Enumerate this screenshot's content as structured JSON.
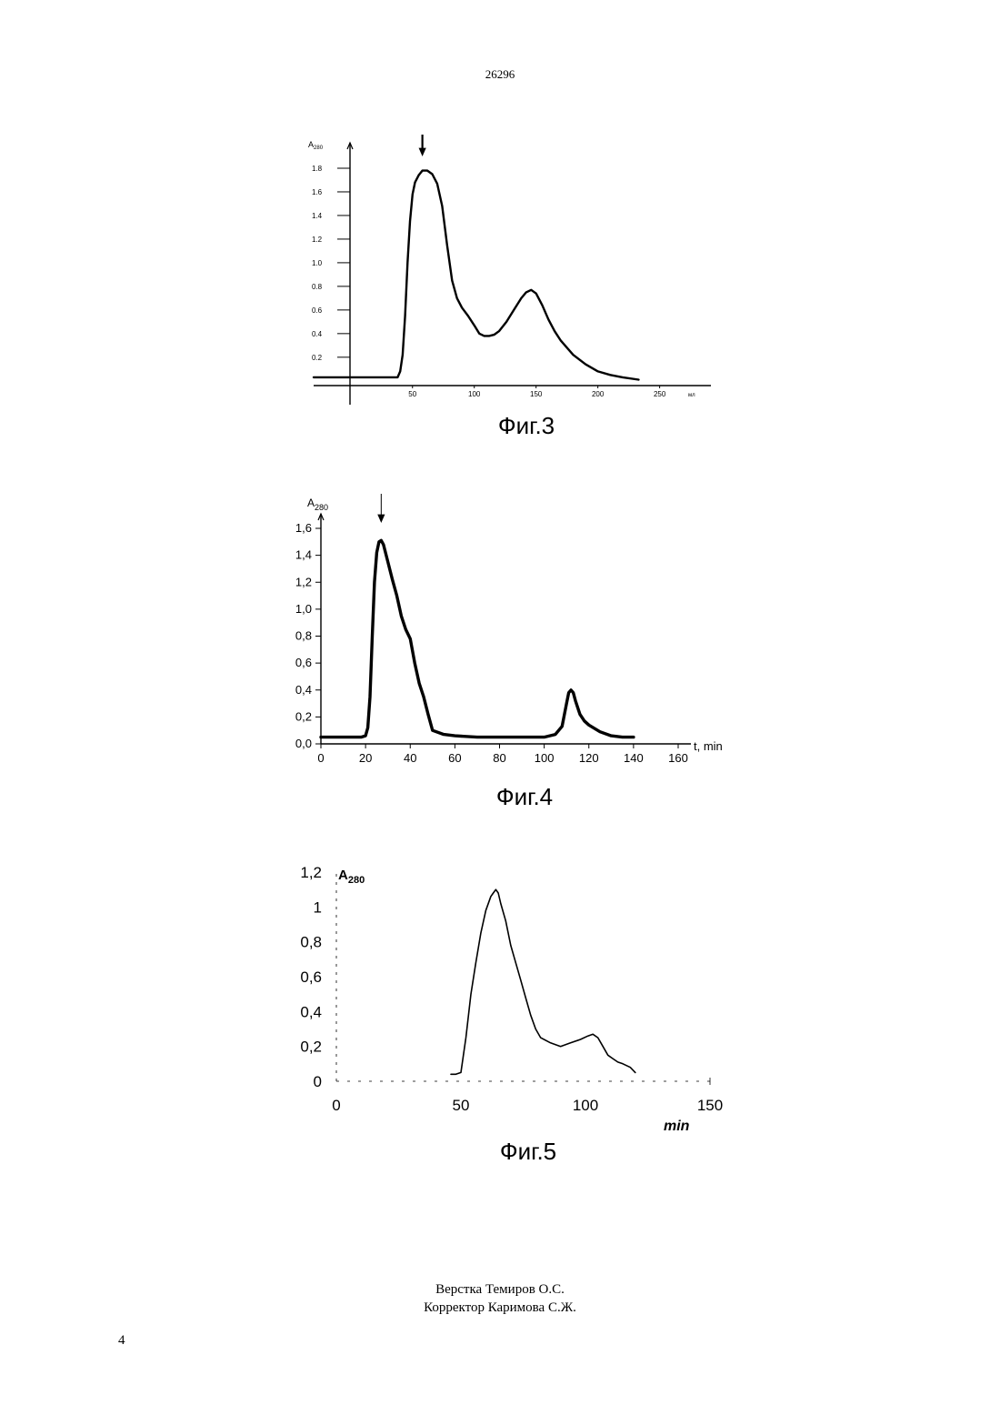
{
  "header": {
    "document_number": "26296"
  },
  "footer": {
    "layout_credit": "Верстка Темиров О.С.",
    "corrector_credit": "Корректор Каримова С.Ж.",
    "page_number": "4"
  },
  "chart_data": [
    {
      "type": "line",
      "figure_label": "Фиг.3",
      "ylabel": "A",
      "ylabel_sub": "280",
      "xlabel": "мл",
      "xlim": [
        -30,
        290
      ],
      "ylim": [
        -0.04,
        1.9
      ],
      "x_ticks": [
        50,
        100,
        150,
        200,
        250
      ],
      "x_tick_labels": [
        "50",
        "100",
        "150",
        "200",
        "250"
      ],
      "y_ticks": [
        0.2,
        0.4,
        0.6,
        0.8,
        1.0,
        1.2,
        1.4,
        1.6,
        1.8
      ],
      "y_tick_labels": [
        "0.2",
        "0.4",
        "0.6",
        "0.8",
        "1.0",
        "1.2",
        "1.4",
        "1.6",
        "1.8"
      ],
      "arrow_x": 58,
      "series": [
        {
          "x": [
            -30,
            0,
            20,
            38,
            40,
            42,
            44,
            46,
            48,
            50,
            52,
            55,
            58,
            62,
            66,
            70,
            74,
            78,
            82,
            86,
            90,
            95,
            100,
            104,
            108,
            112,
            116,
            120,
            126,
            132,
            138,
            142,
            146,
            150,
            155,
            160,
            165,
            170,
            180,
            190,
            200,
            210,
            220,
            233
          ],
          "y": [
            0.03,
            0.03,
            0.03,
            0.03,
            0.08,
            0.22,
            0.55,
            1.0,
            1.35,
            1.58,
            1.68,
            1.74,
            1.78,
            1.78,
            1.75,
            1.67,
            1.48,
            1.15,
            0.85,
            0.7,
            0.62,
            0.55,
            0.47,
            0.4,
            0.38,
            0.38,
            0.39,
            0.42,
            0.5,
            0.6,
            0.7,
            0.75,
            0.77,
            0.74,
            0.64,
            0.52,
            0.42,
            0.34,
            0.22,
            0.14,
            0.08,
            0.05,
            0.03,
            0.01
          ]
        }
      ]
    },
    {
      "type": "line",
      "figure_label": "Фиг.4",
      "ylabel": "A",
      "ylabel_sub": "280",
      "xlabel": "t, min",
      "xlim": [
        0,
        160
      ],
      "ylim": [
        0,
        1.6
      ],
      "x_ticks": [
        0,
        20,
        40,
        60,
        80,
        100,
        120,
        140,
        160
      ],
      "x_tick_labels": [
        "0",
        "20",
        "40",
        "60",
        "80",
        "100",
        "120",
        "140",
        "160"
      ],
      "y_ticks": [
        0,
        0.2,
        0.4,
        0.6,
        0.8,
        1.0,
        1.2,
        1.4,
        1.6
      ],
      "y_tick_labels": [
        "0,0",
        "0,2",
        "0,4",
        "0,6",
        "0,8",
        "1,0",
        "1,2",
        "1,4",
        "1,6"
      ],
      "arrow_x": 27,
      "series": [
        {
          "x": [
            0,
            10,
            18,
            20,
            21,
            22,
            23,
            24,
            25,
            26,
            27,
            28,
            30,
            32,
            34,
            36,
            38,
            40,
            42,
            44,
            46,
            48,
            50,
            55,
            60,
            70,
            80,
            90,
            100,
            105,
            108,
            110,
            111,
            112,
            113,
            114,
            116,
            118,
            120,
            125,
            130,
            135,
            140
          ],
          "y": [
            0.05,
            0.05,
            0.05,
            0.06,
            0.12,
            0.35,
            0.8,
            1.2,
            1.42,
            1.5,
            1.51,
            1.48,
            1.35,
            1.22,
            1.1,
            0.95,
            0.85,
            0.78,
            0.6,
            0.45,
            0.35,
            0.22,
            0.1,
            0.07,
            0.06,
            0.05,
            0.05,
            0.05,
            0.05,
            0.07,
            0.13,
            0.3,
            0.38,
            0.4,
            0.38,
            0.32,
            0.22,
            0.17,
            0.14,
            0.09,
            0.06,
            0.05,
            0.05
          ]
        }
      ]
    },
    {
      "type": "line",
      "figure_label": "Фиг.5",
      "ylabel": "A",
      "ylabel_sub": "280",
      "xlabel": "min",
      "xlim": [
        0,
        150
      ],
      "ylim": [
        0,
        1.2
      ],
      "x_ticks": [
        0,
        50,
        100,
        150
      ],
      "x_tick_labels": [
        "0",
        "50",
        "100",
        "150"
      ],
      "y_ticks": [
        0,
        0.2,
        0.4,
        0.6,
        0.8,
        1,
        1.2
      ],
      "y_tick_labels": [
        "0",
        "0,2",
        "0,4",
        "0,6",
        "0,8",
        "1",
        "1,2"
      ],
      "series": [
        {
          "x": [
            46,
            48,
            50,
            52,
            54,
            56,
            58,
            60,
            62,
            63,
            64,
            65,
            66,
            68,
            70,
            72,
            74,
            76,
            78,
            80,
            82,
            86,
            90,
            94,
            98,
            101,
            103,
            105,
            107,
            109,
            111,
            113,
            115,
            118,
            120
          ],
          "y": [
            0.04,
            0.04,
            0.05,
            0.25,
            0.5,
            0.68,
            0.85,
            0.98,
            1.06,
            1.08,
            1.1,
            1.08,
            1.02,
            0.92,
            0.78,
            0.68,
            0.58,
            0.48,
            0.38,
            0.3,
            0.25,
            0.22,
            0.2,
            0.22,
            0.24,
            0.26,
            0.27,
            0.25,
            0.2,
            0.15,
            0.13,
            0.11,
            0.1,
            0.08,
            0.05
          ]
        }
      ]
    }
  ]
}
